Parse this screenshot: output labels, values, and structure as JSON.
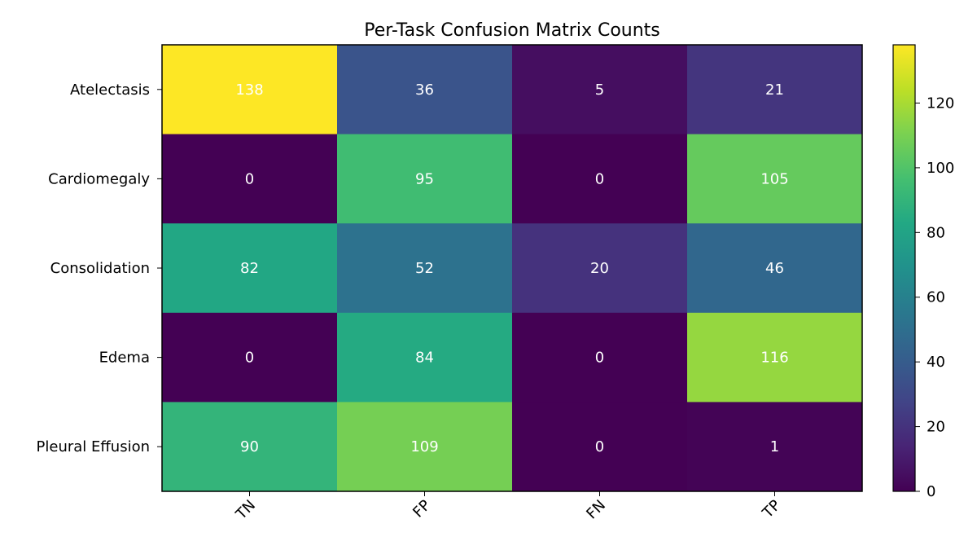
{
  "chart_data": {
    "type": "heatmap",
    "title": "Per-Task Confusion Matrix Counts",
    "rows": [
      "Atelectasis",
      "Cardiomegaly",
      "Consolidation",
      "Edema",
      "Pleural Effusion"
    ],
    "columns": [
      "TN",
      "FP",
      "FN",
      "TP"
    ],
    "values": [
      [
        138,
        36,
        5,
        21
      ],
      [
        0,
        95,
        0,
        105
      ],
      [
        82,
        52,
        20,
        46
      ],
      [
        0,
        84,
        0,
        116
      ],
      [
        90,
        109,
        0,
        1
      ]
    ],
    "colormap": "viridis",
    "colorbar": {
      "min": 0,
      "max": 138,
      "ticks": [
        0,
        20,
        40,
        60,
        80,
        100,
        120
      ]
    },
    "value_text_color": "#ffffff"
  }
}
